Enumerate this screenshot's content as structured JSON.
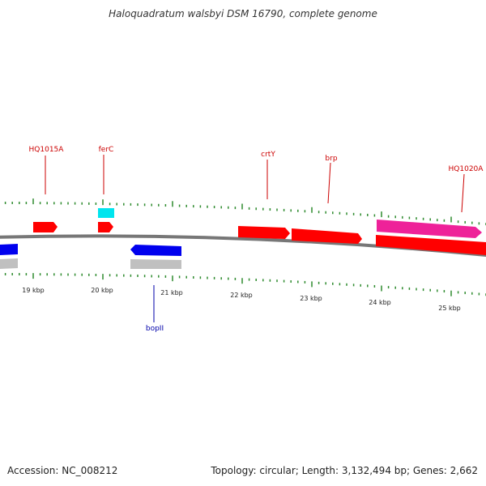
{
  "title": "Haloquadratum walsbyi DSM 16790, complete genome",
  "footer": {
    "accession": "Accession: NC_008212",
    "summary": "Topology: circular; Length: 3,132,494 bp; Genes: 2,662"
  },
  "colors": {
    "backbone": "#777777",
    "tick": "#2e8b2e",
    "gene_red": "#ff0000",
    "gene_magenta": "#ee2299",
    "gene_cyan": "#00e5ee",
    "gene_blue": "#0000ee",
    "gene_gray": "#c0c0c0",
    "label_red": "#cc0000",
    "label_blue": "#0000aa"
  },
  "kbp_labels": [
    "19 kbp",
    "20 kbp",
    "21 kbp",
    "22 kbp",
    "23 kbp",
    "24 kbp",
    "25 kbp"
  ],
  "gene_labels": [
    {
      "name": "HQ1015A",
      "color": "label_red"
    },
    {
      "name": "ferC",
      "color": "label_red"
    },
    {
      "name": "crtY",
      "color": "label_red"
    },
    {
      "name": "brp",
      "color": "label_red"
    },
    {
      "name": "HQ1020A",
      "color": "label_red"
    },
    {
      "name": "bopII",
      "color": "label_blue"
    }
  ]
}
